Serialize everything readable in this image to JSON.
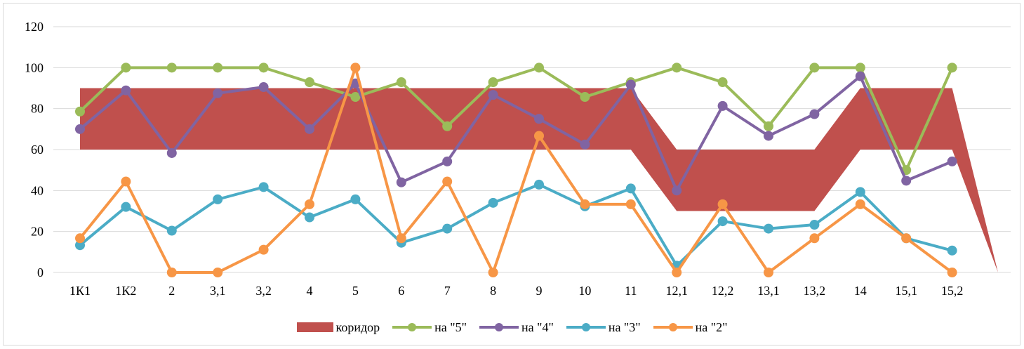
{
  "chart_data": {
    "type": "line",
    "categories": [
      "1К1",
      "1К2",
      "2",
      "3,1",
      "3,2",
      "4",
      "5",
      "6",
      "7",
      "8",
      "9",
      "10",
      "11",
      "12,1",
      "12,2",
      "13,1",
      "13,2",
      "14",
      "15,1",
      "15,2"
    ],
    "y_ticks": [
      "0",
      "20",
      "40",
      "60",
      "80",
      "100",
      "120"
    ],
    "ylim": [
      0,
      120
    ],
    "grid": true,
    "legend_position": "bottom",
    "corridor": {
      "name": "коридор",
      "color": "#c0504d",
      "lower": [
        60,
        60,
        60,
        60,
        60,
        60,
        60,
        60,
        60,
        60,
        60,
        60,
        60,
        30,
        30,
        30,
        30,
        60,
        60,
        60
      ],
      "upper": [
        90,
        90,
        90,
        90,
        90,
        90,
        90,
        90,
        90,
        90,
        90,
        90,
        90,
        60,
        60,
        60,
        60,
        90,
        90,
        90
      ],
      "tail_end": 0
    },
    "series": [
      {
        "name": "на \"5\"",
        "color": "#9bbb59",
        "values": [
          78.6,
          100,
          100,
          100,
          100,
          92.9,
          85.7,
          92.9,
          71.4,
          92.9,
          100,
          85.7,
          92.9,
          100,
          92.9,
          71.4,
          100,
          100,
          50,
          100
        ]
      },
      {
        "name": "на \"4\"",
        "color": "#8064a2",
        "values": [
          70,
          88.9,
          58.3,
          87.5,
          90.5,
          70,
          92.3,
          44,
          54.2,
          86.7,
          75,
          62.5,
          91.7,
          40,
          81.3,
          66.7,
          77.3,
          95.8,
          44.8,
          54.2
        ]
      },
      {
        "name": "на \"3\"",
        "color": "#4bacc6",
        "values": [
          13.3,
          32,
          20.4,
          35.7,
          41.7,
          26.9,
          35.7,
          14.5,
          21.4,
          34,
          42.9,
          32.3,
          41,
          3.3,
          25,
          21.4,
          23.3,
          39.3,
          16.7,
          10.7
        ]
      },
      {
        "name": "на \"2\"",
        "color": "#f79646",
        "values": [
          16.7,
          44.4,
          0,
          0,
          11.1,
          33.3,
          100,
          16.7,
          44.4,
          0,
          66.7,
          33.3,
          33.3,
          0,
          33.3,
          0,
          16.7,
          33.3,
          16.7,
          0
        ]
      }
    ]
  }
}
